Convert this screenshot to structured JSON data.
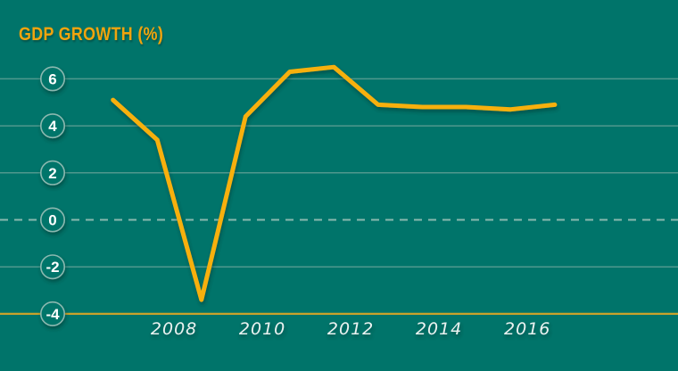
{
  "header": {
    "title": "GDP GROWTH (%)"
  },
  "colors": {
    "background": "#00746A",
    "line": "#F7B011",
    "line_shadow": "#002E2A",
    "title_text": "#F0A40E",
    "axis_baseline": "#C9A22B",
    "gridline": "#4F988E",
    "zero_dashed": "#8AB8AF",
    "tick_circle_stroke": "#8AB8AF",
    "tick_circle_fill": "#00746A",
    "y_tick_text": "#FFFFFF",
    "x_tick_text": "#EAF2F0"
  },
  "chart_data": {
    "type": "line",
    "title": "GDP GROWTH (%)",
    "xlabel": "",
    "ylabel": "GDP growth (%)",
    "x": [
      2006,
      2007,
      2008,
      2009,
      2010,
      2011,
      2012,
      2013,
      2014,
      2015,
      2016
    ],
    "series": [
      {
        "name": "GDP growth (%)",
        "values": [
          5.1,
          3.4,
          -3.4,
          4.4,
          6.3,
          6.5,
          4.9,
          4.8,
          4.8,
          4.7,
          4.9
        ]
      }
    ],
    "x_ticks": [
      2008,
      2010,
      2012,
      2014,
      2016
    ],
    "x_tick_labels": [
      "2008",
      "2010",
      "2012",
      "2014",
      "2016"
    ],
    "y_ticks": [
      6,
      4,
      2,
      0,
      -2,
      -4
    ],
    "y_tick_labels": [
      "6",
      "4",
      "2",
      "0",
      "-2",
      "-4"
    ],
    "ylim": [
      -4,
      6.5
    ],
    "xlim": [
      2004.06,
      2019.41
    ],
    "grid": "horizontal",
    "zero_line_style": "dashed",
    "baseline_value": -4,
    "legend": "none",
    "markers": "none"
  }
}
